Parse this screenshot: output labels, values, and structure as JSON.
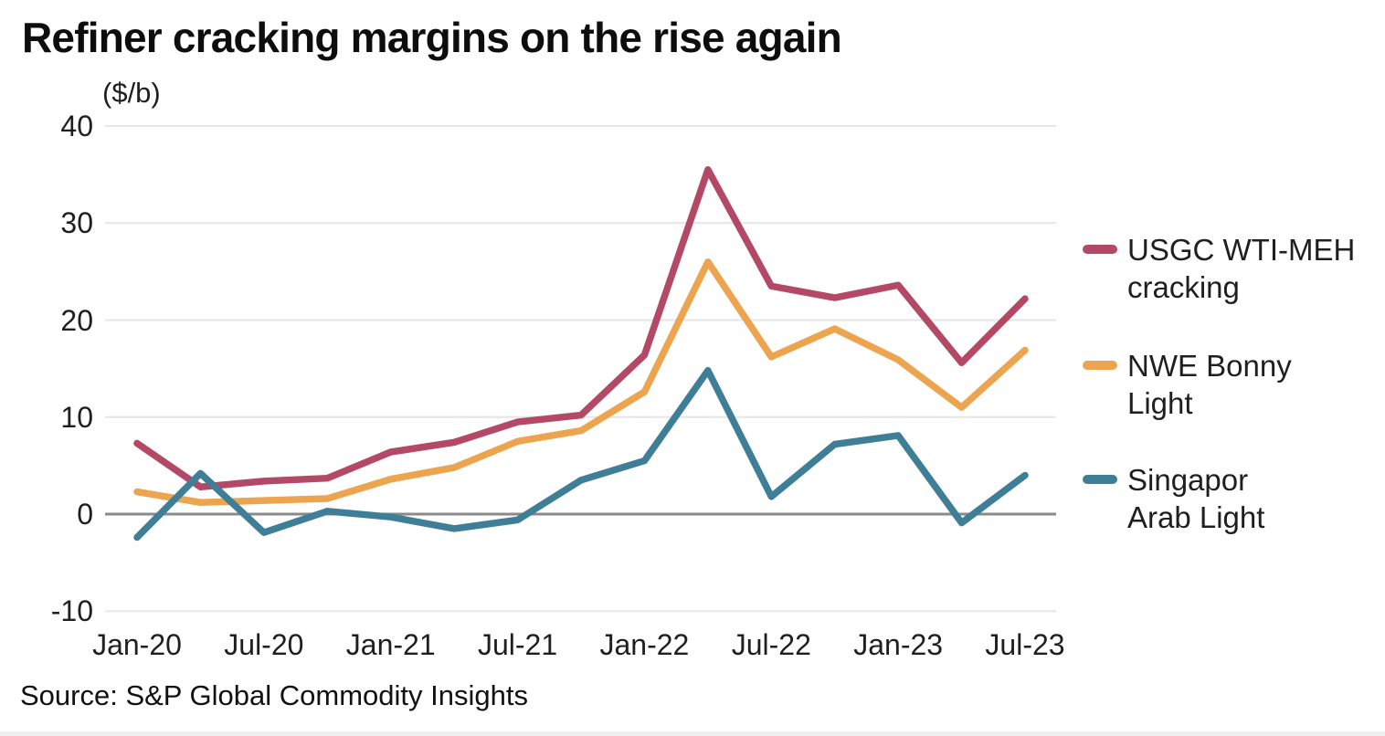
{
  "title": "Refiner cracking margins on the rise again",
  "unit_label": "($/b)",
  "source": "Source: S&P Global Commodity Insights",
  "legend": [
    {
      "line1": "USGC WTI-MEH",
      "line2": "cracking"
    },
    {
      "line1": "NWE Bonny",
      "line2": "Light"
    },
    {
      "line1": "Singapor",
      "line2": "Arab Light"
    }
  ],
  "colors": {
    "usgc_wti_meh": "#b34967",
    "nwe_bonny_light": "#eda44f",
    "singapore_arab_light": "#3e7e96",
    "zero_line": "#8a8a8a",
    "gridline": "#e6e6e6",
    "text": "#1f1f1f"
  },
  "chart_data": {
    "type": "line",
    "title": "Refiner cracking margins on the rise again",
    "ylabel": "($/b)",
    "xlabel": "",
    "ylim": [
      -10,
      40
    ],
    "yticks": [
      40,
      30,
      20,
      10,
      0,
      -10
    ],
    "grid": "horizontal",
    "legend_position": "right",
    "x": [
      "Jan-20",
      "Apr-20",
      "Jul-20",
      "Oct-20",
      "Jan-21",
      "Apr-21",
      "Jul-21",
      "Oct-21",
      "Jan-22",
      "Apr-22",
      "Jul-22",
      "Oct-22",
      "Jan-23",
      "Apr-23",
      "Jul-23"
    ],
    "x_axis_ticks": [
      "Jan-20",
      "Jul-20",
      "Jan-21",
      "Jul-21",
      "Jan-22",
      "Jul-22",
      "Jan-23",
      "Jul-23"
    ],
    "series": [
      {
        "name": "USGC WTI-MEH cracking",
        "color": "#b34967",
        "values": [
          7.3,
          2.8,
          3.4,
          3.7,
          6.4,
          7.4,
          9.5,
          10.2,
          16.4,
          35.5,
          23.5,
          22.3,
          23.6,
          15.6,
          22.2
        ]
      },
      {
        "name": "NWE Bonny Light",
        "color": "#eda44f",
        "values": [
          2.3,
          1.2,
          1.4,
          1.6,
          3.6,
          4.8,
          7.5,
          8.6,
          12.6,
          26.0,
          16.2,
          19.1,
          15.9,
          11.0,
          16.9
        ]
      },
      {
        "name": "Singapor Arab Light",
        "color": "#3e7e96",
        "values": [
          -2.4,
          4.2,
          -1.9,
          0.3,
          -0.3,
          -1.5,
          -0.6,
          3.5,
          5.5,
          14.8,
          1.8,
          7.2,
          8.1,
          -0.9,
          4.0
        ]
      }
    ]
  }
}
